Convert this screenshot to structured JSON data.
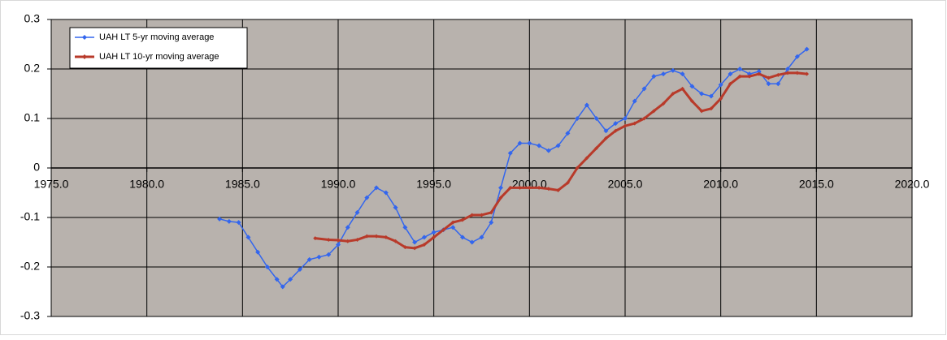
{
  "chart_data": {
    "type": "line",
    "xlim": [
      1975,
      2020
    ],
    "xticks": [
      {
        "value": 1975,
        "label": "1975.0"
      },
      {
        "value": 1980,
        "label": "1980.0"
      },
      {
        "value": 1985,
        "label": "1985.0"
      },
      {
        "value": 1990,
        "label": "1990.0"
      },
      {
        "value": 1995,
        "label": "1995.0"
      },
      {
        "value": 2000,
        "label": "2000.0"
      },
      {
        "value": 2005,
        "label": "2005.0"
      },
      {
        "value": 2010,
        "label": "2010.0"
      },
      {
        "value": 2015,
        "label": "2015.0"
      },
      {
        "value": 2020,
        "label": "2020.0"
      }
    ],
    "ylim": [
      -0.3,
      0.3
    ],
    "yticks": [
      0.3,
      0.2,
      0.1,
      0,
      -0.1,
      -0.2,
      -0.3
    ],
    "grid": true,
    "legend": "top-left",
    "series": [
      {
        "name": "UAH LT 5-yr moving average",
        "color": "#3366ee",
        "x": [
          1983.8,
          1984.3,
          1984.8,
          1985.3,
          1985.8,
          1986.3,
          1986.8,
          1987.1,
          1987.5,
          1988.0,
          1988.5,
          1989.0,
          1989.5,
          1990.0,
          1990.5,
          1991.0,
          1991.5,
          1992.0,
          1992.5,
          1993.0,
          1993.5,
          1994.0,
          1994.5,
          1995.0,
          1995.5,
          1996.0,
          1996.5,
          1997.0,
          1997.5,
          1998.0,
          1998.5,
          1999.0,
          1999.5,
          2000.0,
          2000.5,
          2001.0,
          2001.5,
          2002.0,
          2002.5,
          2003.0,
          2003.5,
          2004.0,
          2004.5,
          2005.0,
          2005.5,
          2006.0,
          2006.5,
          2007.0,
          2007.5,
          2008.0,
          2008.5,
          2009.0,
          2009.5,
          2010.0,
          2010.5,
          2011.0,
          2011.5,
          2012.0,
          2012.5,
          2013.0,
          2013.5,
          2014.0,
          2014.5
        ],
        "values": [
          -0.103,
          -0.108,
          -0.11,
          -0.14,
          -0.17,
          -0.2,
          -0.225,
          -0.24,
          -0.225,
          -0.205,
          -0.185,
          -0.18,
          -0.175,
          -0.155,
          -0.12,
          -0.09,
          -0.06,
          -0.04,
          -0.05,
          -0.08,
          -0.12,
          -0.15,
          -0.14,
          -0.13,
          -0.125,
          -0.12,
          -0.14,
          -0.15,
          -0.14,
          -0.11,
          -0.04,
          0.03,
          0.05,
          0.05,
          0.045,
          0.035,
          0.045,
          0.07,
          0.1,
          0.127,
          0.1,
          0.075,
          0.09,
          0.1,
          0.135,
          0.16,
          0.185,
          0.19,
          0.197,
          0.19,
          0.165,
          0.15,
          0.145,
          0.168,
          0.19,
          0.2,
          0.19,
          0.195,
          0.17,
          0.17,
          0.2,
          0.225,
          0.24
        ]
      },
      {
        "name": "UAH LT 10-yr moving average",
        "color": "#b83a2a",
        "x": [
          1988.8,
          1989.5,
          1990.0,
          1990.5,
          1991.0,
          1991.5,
          1992.0,
          1992.5,
          1993.0,
          1993.5,
          1994.0,
          1994.5,
          1995.0,
          1995.5,
          1996.0,
          1996.5,
          1997.0,
          1997.5,
          1998.0,
          1998.5,
          1999.0,
          1999.5,
          2000.0,
          2000.5,
          2001.0,
          2001.5,
          2002.0,
          2002.5,
          2003.0,
          2003.5,
          2004.0,
          2004.5,
          2005.0,
          2005.5,
          2006.0,
          2006.5,
          2007.0,
          2007.5,
          2008.0,
          2008.5,
          2009.0,
          2009.5,
          2010.0,
          2010.5,
          2011.0,
          2011.5,
          2012.0,
          2012.5,
          2013.0,
          2013.5,
          2014.0,
          2014.5
        ],
        "values": [
          -0.142,
          -0.145,
          -0.146,
          -0.148,
          -0.145,
          -0.138,
          -0.138,
          -0.14,
          -0.148,
          -0.16,
          -0.162,
          -0.155,
          -0.14,
          -0.125,
          -0.11,
          -0.105,
          -0.095,
          -0.095,
          -0.09,
          -0.06,
          -0.04,
          -0.04,
          -0.04,
          -0.04,
          -0.042,
          -0.045,
          -0.03,
          0,
          0.02,
          0.04,
          0.06,
          0.075,
          0.085,
          0.09,
          0.1,
          0.115,
          0.13,
          0.15,
          0.16,
          0.135,
          0.115,
          0.12,
          0.14,
          0.17,
          0.185,
          0.185,
          0.19,
          0.182,
          0.188,
          0.192,
          0.192,
          0.19
        ]
      }
    ]
  }
}
